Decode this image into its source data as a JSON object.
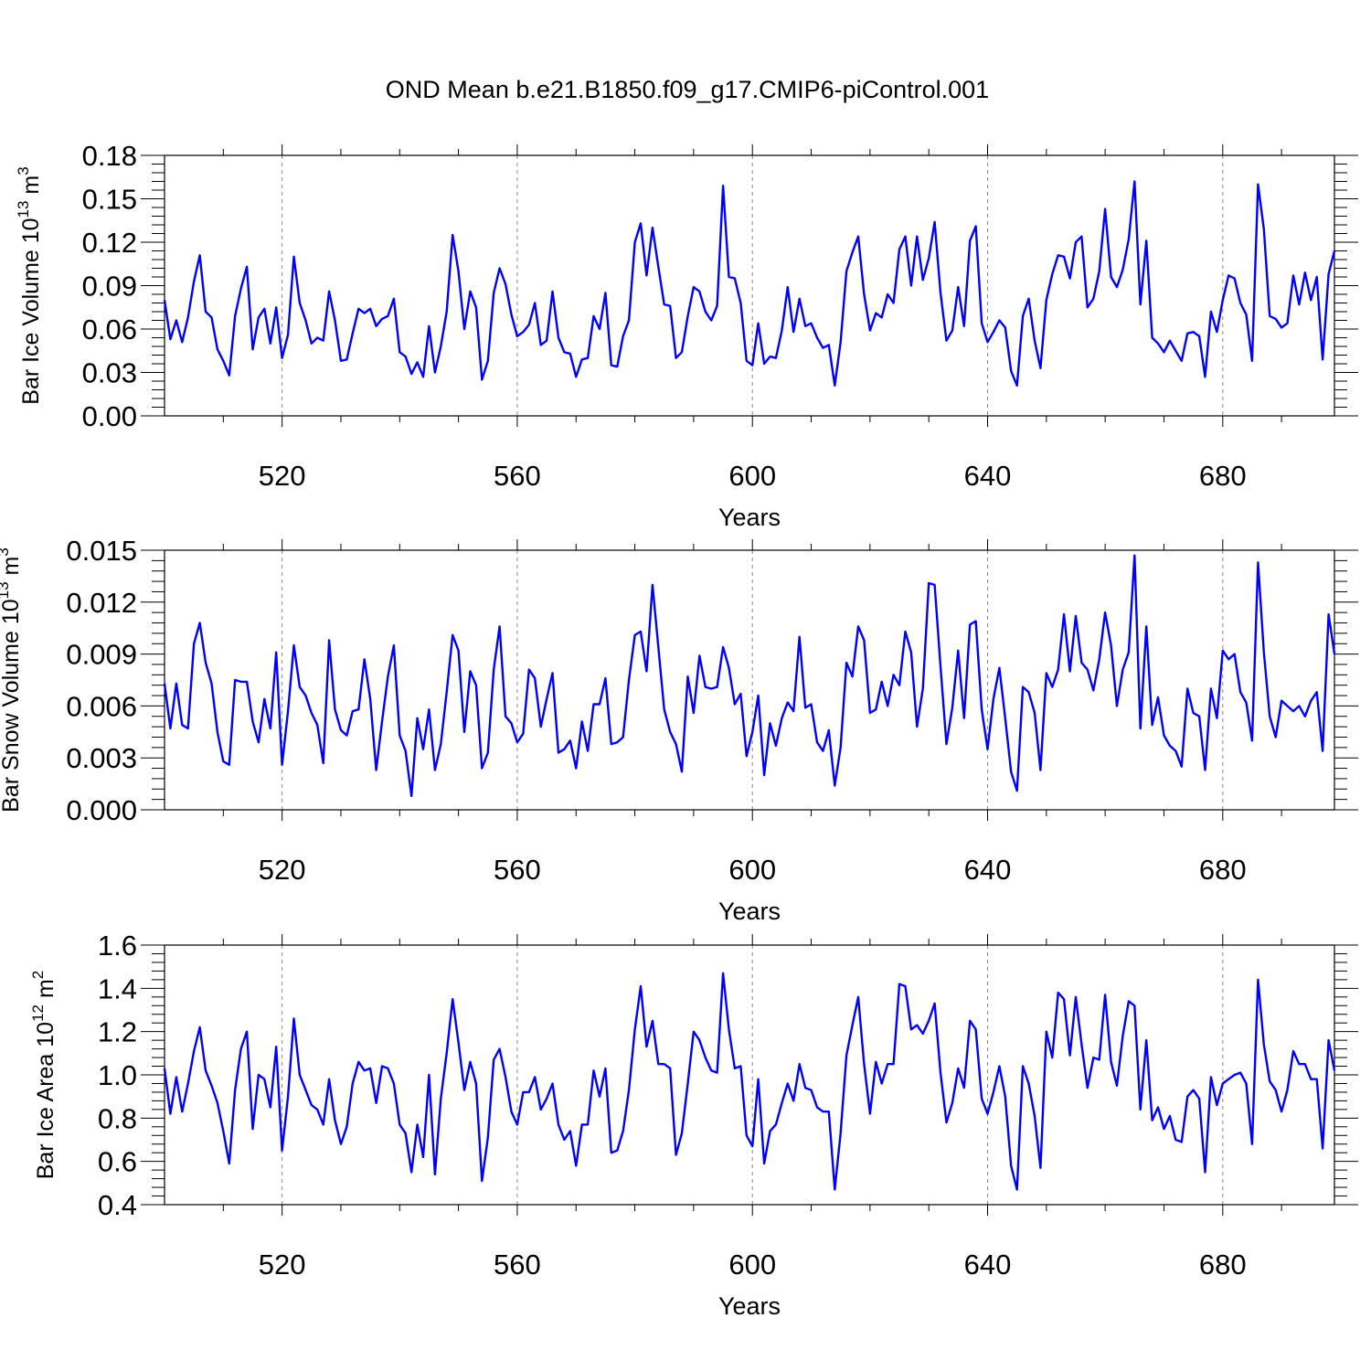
{
  "chart_data": [
    {
      "type": "line",
      "title": "OND Mean b.e21.B1850.f09_g17.CMIP6-piControl.001",
      "xlabel": "Years",
      "ylabel": "Bar Ice Volume 10",
      "ylabel_exponent": "13",
      "ylabel_unit": " m",
      "ylabel_unit_exponent": "3",
      "xlim": [
        500,
        699
      ],
      "ylim": [
        0,
        0.18
      ],
      "xticks": [
        520,
        560,
        600,
        640,
        680
      ],
      "xtick_labels": [
        "520",
        "560",
        "600",
        "640",
        "680"
      ],
      "yticks": [
        0,
        0.03,
        0.06,
        0.09,
        0.12,
        0.15,
        0.18
      ],
      "ytick_labels": [
        "0.00",
        "0.03",
        "0.06",
        "0.09",
        "0.12",
        "0.15",
        "0.18"
      ],
      "grid": "vertical dashed at major x ticks",
      "x_start": 500,
      "values": [
        0.08,
        0.053,
        0.066,
        0.051,
        0.068,
        0.093,
        0.111,
        0.072,
        0.068,
        0.046,
        0.038,
        0.028,
        0.069,
        0.088,
        0.103,
        0.046,
        0.068,
        0.074,
        0.05,
        0.075,
        0.04,
        0.056,
        0.11,
        0.078,
        0.066,
        0.05,
        0.054,
        0.052,
        0.086,
        0.066,
        0.038,
        0.039,
        0.057,
        0.074,
        0.071,
        0.074,
        0.062,
        0.067,
        0.069,
        0.081,
        0.044,
        0.041,
        0.029,
        0.037,
        0.027,
        0.062,
        0.03,
        0.048,
        0.072,
        0.125,
        0.1,
        0.06,
        0.086,
        0.075,
        0.025,
        0.038,
        0.085,
        0.102,
        0.091,
        0.07,
        0.055,
        0.058,
        0.063,
        0.078,
        0.049,
        0.052,
        0.086,
        0.054,
        0.044,
        0.043,
        0.027,
        0.039,
        0.04,
        0.069,
        0.06,
        0.085,
        0.035,
        0.034,
        0.055,
        0.066,
        0.12,
        0.133,
        0.097,
        0.13,
        0.103,
        0.077,
        0.076,
        0.04,
        0.044,
        0.069,
        0.089,
        0.086,
        0.072,
        0.066,
        0.076,
        0.159,
        0.096,
        0.095,
        0.078,
        0.038,
        0.035,
        0.064,
        0.036,
        0.041,
        0.04,
        0.059,
        0.089,
        0.058,
        0.081,
        0.062,
        0.064,
        0.054,
        0.047,
        0.049,
        0.021,
        0.051,
        0.1,
        0.113,
        0.124,
        0.084,
        0.059,
        0.071,
        0.068,
        0.084,
        0.078,
        0.115,
        0.124,
        0.09,
        0.124,
        0.094,
        0.109,
        0.134,
        0.085,
        0.052,
        0.059,
        0.089,
        0.062,
        0.121,
        0.131,
        0.064,
        0.051,
        0.058,
        0.066,
        0.061,
        0.031,
        0.021,
        0.069,
        0.081,
        0.052,
        0.033,
        0.08,
        0.098,
        0.111,
        0.11,
        0.095,
        0.12,
        0.124,
        0.075,
        0.081,
        0.1,
        0.143,
        0.096,
        0.089,
        0.101,
        0.122,
        0.162,
        0.077,
        0.121,
        0.054,
        0.05,
        0.044,
        0.052,
        0.045,
        0.038,
        0.057,
        0.058,
        0.055,
        0.027,
        0.072,
        0.058,
        0.08,
        0.097,
        0.095,
        0.078,
        0.07,
        0.038,
        0.16,
        0.129,
        0.069,
        0.067,
        0.061,
        0.064,
        0.097,
        0.077,
        0.099,
        0.08,
        0.096,
        0.039,
        0.098,
        0.114
      ]
    },
    {
      "type": "line",
      "xlabel": "Years",
      "ylabel": "Bar Snow Volume 10",
      "ylabel_exponent": "13",
      "ylabel_unit": " m",
      "ylabel_unit_exponent": "3",
      "xlim": [
        500,
        699
      ],
      "ylim": [
        0,
        0.015
      ],
      "xticks": [
        520,
        560,
        600,
        640,
        680
      ],
      "xtick_labels": [
        "520",
        "560",
        "600",
        "640",
        "680"
      ],
      "yticks": [
        0,
        0.003,
        0.006,
        0.009,
        0.012,
        0.015
      ],
      "ytick_labels": [
        "0.000",
        "0.003",
        "0.006",
        "0.009",
        "0.012",
        "0.015"
      ],
      "grid": "vertical dashed at major x ticks",
      "x_start": 500,
      "values": [
        0.0073,
        0.0047,
        0.0073,
        0.0049,
        0.0047,
        0.0096,
        0.0108,
        0.0085,
        0.0073,
        0.0045,
        0.0028,
        0.0026,
        0.0075,
        0.0074,
        0.0074,
        0.0051,
        0.0039,
        0.0064,
        0.0047,
        0.0091,
        0.0026,
        0.0057,
        0.0095,
        0.0071,
        0.0066,
        0.0056,
        0.0049,
        0.0027,
        0.0098,
        0.0058,
        0.0046,
        0.0043,
        0.0057,
        0.0058,
        0.0087,
        0.0064,
        0.0023,
        0.0051,
        0.0077,
        0.0095,
        0.0043,
        0.0034,
        0.0008,
        0.0053,
        0.0035,
        0.0058,
        0.0023,
        0.0038,
        0.0068,
        0.0101,
        0.0092,
        0.0045,
        0.008,
        0.0072,
        0.0024,
        0.0033,
        0.0081,
        0.0106,
        0.0054,
        0.005,
        0.0039,
        0.0044,
        0.0081,
        0.0076,
        0.0048,
        0.0064,
        0.0079,
        0.0033,
        0.0035,
        0.004,
        0.0024,
        0.0051,
        0.0034,
        0.0061,
        0.0061,
        0.0076,
        0.0038,
        0.0039,
        0.0042,
        0.0075,
        0.0101,
        0.0103,
        0.008,
        0.013,
        0.0094,
        0.0058,
        0.0045,
        0.0038,
        0.0022,
        0.0077,
        0.0056,
        0.0089,
        0.0071,
        0.007,
        0.0071,
        0.0094,
        0.0082,
        0.0061,
        0.0067,
        0.0031,
        0.0045,
        0.0066,
        0.002,
        0.005,
        0.0037,
        0.0053,
        0.0062,
        0.0057,
        0.01,
        0.0059,
        0.0061,
        0.0039,
        0.0034,
        0.0046,
        0.0014,
        0.0036,
        0.0085,
        0.0077,
        0.0106,
        0.0098,
        0.0056,
        0.0058,
        0.0074,
        0.006,
        0.0078,
        0.0072,
        0.0103,
        0.0091,
        0.0048,
        0.007,
        0.0131,
        0.013,
        0.0083,
        0.0038,
        0.0059,
        0.0092,
        0.0053,
        0.0107,
        0.0109,
        0.0058,
        0.0035,
        0.0064,
        0.0082,
        0.0053,
        0.0022,
        0.0011,
        0.0071,
        0.0068,
        0.0056,
        0.0023,
        0.0079,
        0.0071,
        0.0081,
        0.0113,
        0.008,
        0.0112,
        0.0085,
        0.0081,
        0.0069,
        0.0087,
        0.0114,
        0.0095,
        0.006,
        0.0081,
        0.0091,
        0.0147,
        0.0047,
        0.0106,
        0.0049,
        0.0065,
        0.0043,
        0.0037,
        0.0034,
        0.0025,
        0.007,
        0.0056,
        0.0054,
        0.0023,
        0.007,
        0.0053,
        0.0092,
        0.0087,
        0.009,
        0.0068,
        0.0062,
        0.004,
        0.0143,
        0.0091,
        0.0054,
        0.0042,
        0.0063,
        0.006,
        0.0057,
        0.006,
        0.0054,
        0.0063,
        0.0068,
        0.0034,
        0.0113,
        0.009
      ]
    },
    {
      "type": "line",
      "xlabel": "Years",
      "ylabel": "Bar Ice Area 10",
      "ylabel_exponent": "12",
      "ylabel_unit": " m",
      "ylabel_unit_exponent": "2",
      "xlim": [
        500,
        699
      ],
      "ylim": [
        0.4,
        1.6
      ],
      "xticks": [
        520,
        560,
        600,
        640,
        680
      ],
      "xtick_labels": [
        "520",
        "560",
        "600",
        "640",
        "680"
      ],
      "yticks": [
        0.4,
        0.6,
        0.8,
        1.0,
        1.2,
        1.4,
        1.6
      ],
      "ytick_labels": [
        "0.4",
        "0.6",
        "0.8",
        "1.0",
        "1.2",
        "1.4",
        "1.6"
      ],
      "grid": "vertical dashed at major x ticks",
      "x_start": 500,
      "values": [
        1.03,
        0.82,
        0.99,
        0.83,
        0.96,
        1.11,
        1.22,
        1.02,
        0.95,
        0.87,
        0.74,
        0.59,
        0.93,
        1.12,
        1.2,
        0.75,
        1.0,
        0.98,
        0.85,
        1.13,
        0.65,
        0.9,
        1.26,
        1.0,
        0.93,
        0.86,
        0.84,
        0.77,
        0.98,
        0.79,
        0.68,
        0.76,
        0.96,
        1.06,
        1.02,
        1.03,
        0.87,
        1.04,
        1.03,
        0.96,
        0.77,
        0.73,
        0.55,
        0.77,
        0.62,
        1.0,
        0.54,
        0.89,
        1.1,
        1.35,
        1.15,
        0.93,
        1.06,
        0.96,
        0.51,
        0.71,
        1.07,
        1.12,
        0.99,
        0.83,
        0.77,
        0.92,
        0.92,
        0.99,
        0.84,
        0.89,
        0.96,
        0.77,
        0.7,
        0.74,
        0.58,
        0.77,
        0.77,
        1.02,
        0.9,
        1.03,
        0.64,
        0.65,
        0.74,
        0.93,
        1.21,
        1.41,
        1.13,
        1.25,
        1.05,
        1.05,
        1.03,
        0.63,
        0.73,
        0.96,
        1.2,
        1.16,
        1.08,
        1.02,
        1.01,
        1.47,
        1.21,
        1.03,
        1.04,
        0.72,
        0.67,
        0.98,
        0.59,
        0.74,
        0.77,
        0.87,
        0.96,
        0.88,
        1.05,
        0.94,
        0.93,
        0.85,
        0.83,
        0.83,
        0.47,
        0.73,
        1.09,
        1.23,
        1.36,
        1.05,
        0.82,
        1.06,
        0.96,
        1.05,
        1.05,
        1.42,
        1.41,
        1.21,
        1.23,
        1.19,
        1.25,
        1.33,
        1.01,
        0.78,
        0.87,
        1.03,
        0.94,
        1.25,
        1.21,
        0.89,
        0.82,
        0.92,
        1.04,
        0.9,
        0.58,
        0.47,
        1.04,
        0.96,
        0.81,
        0.57,
        1.2,
        1.08,
        1.38,
        1.35,
        1.09,
        1.36,
        1.14,
        0.94,
        1.08,
        1.07,
        1.37,
        1.06,
        0.95,
        1.18,
        1.34,
        1.32,
        0.84,
        1.16,
        0.79,
        0.85,
        0.75,
        0.81,
        0.7,
        0.69,
        0.9,
        0.93,
        0.89,
        0.55,
        0.99,
        0.86,
        0.96,
        0.98,
        1.0,
        1.01,
        0.96,
        0.68,
        1.44,
        1.14,
        0.97,
        0.93,
        0.83,
        0.93,
        1.11,
        1.05,
        1.05,
        0.98,
        0.98,
        0.66,
        1.16,
        1.02
      ]
    }
  ]
}
